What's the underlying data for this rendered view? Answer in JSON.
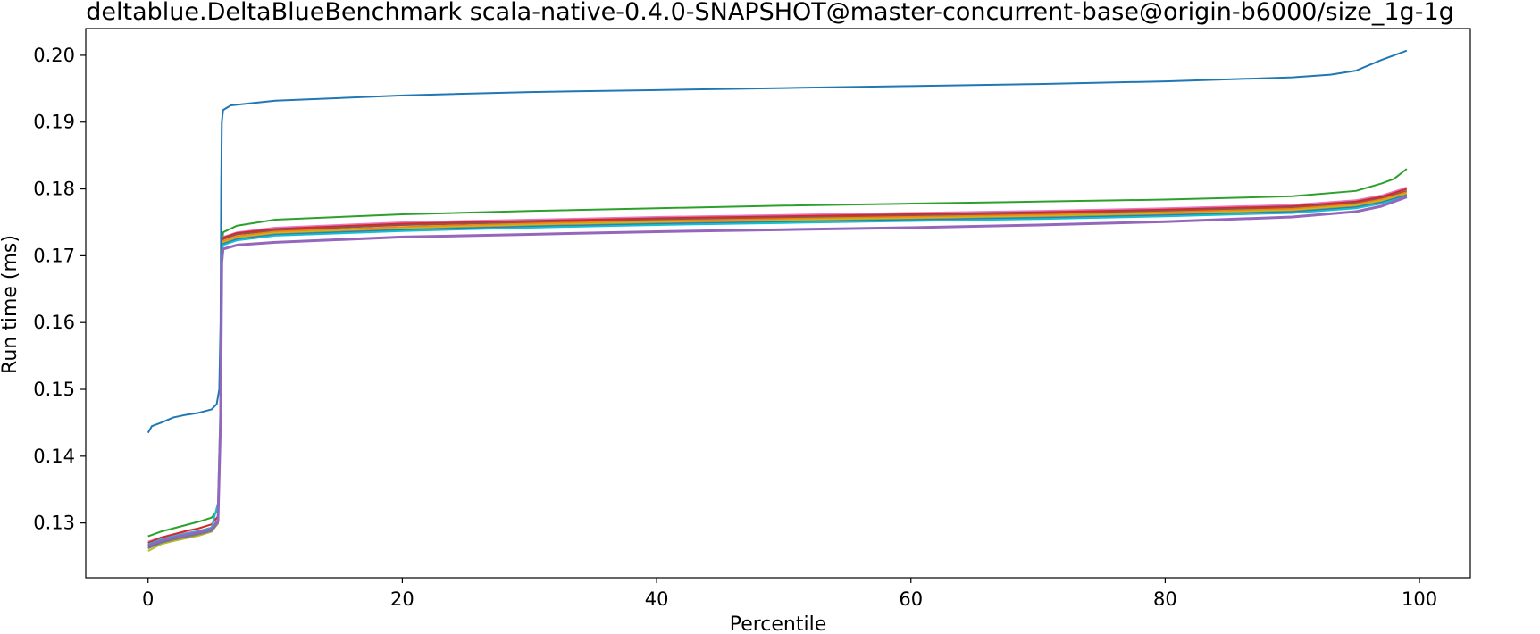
{
  "chart_data": {
    "type": "line",
    "title": "deltablue.DeltaBlueBenchmark scala-native-0.4.0-SNAPSHOT@master-concurrent-base@origin-b6000/size_1g-1g",
    "xlabel": "Percentile",
    "ylabel": "Run time (ms)",
    "xlim": [
      -4.9,
      104
    ],
    "ylim": [
      0.1218,
      0.204
    ],
    "xticks": [
      0,
      20,
      40,
      60,
      80,
      100
    ],
    "xtick_labels": [
      "0",
      "20",
      "40",
      "60",
      "80",
      "100"
    ],
    "yticks": [
      0.13,
      0.14,
      0.15,
      0.16,
      0.17,
      0.18,
      0.19,
      0.2
    ],
    "ytick_labels": [
      "0.13",
      "0.14",
      "0.15",
      "0.16",
      "0.17",
      "0.18",
      "0.19",
      "0.20"
    ],
    "grid": false,
    "legend": false,
    "series": [
      {
        "color": "#1f77b4",
        "points": [
          [
            0,
            0.1435
          ],
          [
            0.3,
            0.1445
          ],
          [
            1,
            0.145
          ],
          [
            2,
            0.1458
          ],
          [
            3,
            0.1462
          ],
          [
            4,
            0.1465
          ],
          [
            5,
            0.147
          ],
          [
            5.4,
            0.1478
          ],
          [
            5.6,
            0.15
          ],
          [
            5.7,
            0.16
          ],
          [
            5.75,
            0.18
          ],
          [
            5.8,
            0.19
          ],
          [
            5.9,
            0.1918
          ],
          [
            6.5,
            0.1925
          ],
          [
            10,
            0.1932
          ],
          [
            20,
            0.194
          ],
          [
            30,
            0.1945
          ],
          [
            40,
            0.1948
          ],
          [
            50,
            0.1951
          ],
          [
            60,
            0.1954
          ],
          [
            70,
            0.1957
          ],
          [
            80,
            0.1961
          ],
          [
            90,
            0.1967
          ],
          [
            93,
            0.1971
          ],
          [
            95,
            0.1977
          ],
          [
            96,
            0.1985
          ],
          [
            97,
            0.1993
          ],
          [
            98,
            0.2
          ],
          [
            99,
            0.2007
          ]
        ]
      },
      {
        "color": "#2ca02c",
        "points": [
          [
            0,
            0.128
          ],
          [
            1,
            0.1287
          ],
          [
            2,
            0.1292
          ],
          [
            3,
            0.1297
          ],
          [
            4,
            0.1302
          ],
          [
            5,
            0.1308
          ],
          [
            5.5,
            0.132
          ],
          [
            5.7,
            0.145
          ],
          [
            5.8,
            0.17
          ],
          [
            5.9,
            0.1735
          ],
          [
            7,
            0.1745
          ],
          [
            10,
            0.1754
          ],
          [
            20,
            0.1762
          ],
          [
            30,
            0.1767
          ],
          [
            40,
            0.1771
          ],
          [
            50,
            0.1775
          ],
          [
            60,
            0.1778
          ],
          [
            70,
            0.1781
          ],
          [
            80,
            0.1784
          ],
          [
            90,
            0.1789
          ],
          [
            95,
            0.1797
          ],
          [
            97,
            0.1808
          ],
          [
            98,
            0.1815
          ],
          [
            99,
            0.183
          ]
        ]
      },
      {
        "color": "#e377c2",
        "points": [
          [
            0,
            0.1272
          ],
          [
            1,
            0.1278
          ],
          [
            2,
            0.1282
          ],
          [
            3,
            0.1285
          ],
          [
            4,
            0.1288
          ],
          [
            5,
            0.1293
          ],
          [
            5.5,
            0.1305
          ],
          [
            5.7,
            0.145
          ],
          [
            5.8,
            0.17
          ],
          [
            5.9,
            0.1728
          ],
          [
            7,
            0.1735
          ],
          [
            10,
            0.1742
          ],
          [
            20,
            0.175
          ],
          [
            30,
            0.1754
          ],
          [
            40,
            0.1758
          ],
          [
            50,
            0.1761
          ],
          [
            60,
            0.1764
          ],
          [
            70,
            0.1767
          ],
          [
            80,
            0.1771
          ],
          [
            90,
            0.1776
          ],
          [
            95,
            0.1783
          ],
          [
            97,
            0.179
          ],
          [
            99,
            0.1802
          ]
        ]
      },
      {
        "color": "#d62728",
        "points": [
          [
            0,
            0.127
          ],
          [
            1,
            0.1278
          ],
          [
            2,
            0.1283
          ],
          [
            3,
            0.1288
          ],
          [
            4,
            0.1292
          ],
          [
            5,
            0.1298
          ],
          [
            5.5,
            0.131
          ],
          [
            5.7,
            0.145
          ],
          [
            5.8,
            0.17
          ],
          [
            5.9,
            0.1727
          ],
          [
            7,
            0.1734
          ],
          [
            10,
            0.174
          ],
          [
            20,
            0.1748
          ],
          [
            30,
            0.1752
          ],
          [
            40,
            0.1756
          ],
          [
            50,
            0.1759
          ],
          [
            60,
            0.1762
          ],
          [
            70,
            0.1765
          ],
          [
            80,
            0.1769
          ],
          [
            90,
            0.1774
          ],
          [
            95,
            0.1781
          ],
          [
            97,
            0.1788
          ],
          [
            99,
            0.18
          ]
        ]
      },
      {
        "color": "#8c564b",
        "points": [
          [
            0,
            0.1266
          ],
          [
            1,
            0.1274
          ],
          [
            2,
            0.1278
          ],
          [
            3,
            0.1282
          ],
          [
            4,
            0.1286
          ],
          [
            5,
            0.1291
          ],
          [
            5.5,
            0.1303
          ],
          [
            5.7,
            0.145
          ],
          [
            5.8,
            0.17
          ],
          [
            5.9,
            0.1725
          ],
          [
            7,
            0.1732
          ],
          [
            10,
            0.1738
          ],
          [
            20,
            0.1746
          ],
          [
            30,
            0.175
          ],
          [
            40,
            0.1754
          ],
          [
            50,
            0.1757
          ],
          [
            60,
            0.176
          ],
          [
            70,
            0.1763
          ],
          [
            80,
            0.1767
          ],
          [
            90,
            0.1772
          ],
          [
            95,
            0.1779
          ],
          [
            97,
            0.1786
          ],
          [
            99,
            0.1797
          ]
        ]
      },
      {
        "color": "#ff7f0e",
        "points": [
          [
            0,
            0.1262
          ],
          [
            1,
            0.1271
          ],
          [
            2,
            0.1276
          ],
          [
            3,
            0.128
          ],
          [
            4,
            0.1284
          ],
          [
            5,
            0.1289
          ],
          [
            5.5,
            0.1301
          ],
          [
            5.7,
            0.145
          ],
          [
            5.8,
            0.17
          ],
          [
            5.9,
            0.1722
          ],
          [
            7,
            0.1729
          ],
          [
            10,
            0.1736
          ],
          [
            20,
            0.1743
          ],
          [
            30,
            0.1748
          ],
          [
            40,
            0.1752
          ],
          [
            50,
            0.1755
          ],
          [
            60,
            0.1758
          ],
          [
            70,
            0.1761
          ],
          [
            80,
            0.1765
          ],
          [
            90,
            0.177
          ],
          [
            95,
            0.1777
          ],
          [
            97,
            0.1784
          ],
          [
            99,
            0.1795
          ]
        ]
      },
      {
        "color": "#bcbd22",
        "points": [
          [
            0,
            0.1258
          ],
          [
            1,
            0.1268
          ],
          [
            2,
            0.1273
          ],
          [
            3,
            0.1277
          ],
          [
            4,
            0.1281
          ],
          [
            5,
            0.1287
          ],
          [
            5.5,
            0.1299
          ],
          [
            5.7,
            0.145
          ],
          [
            5.8,
            0.17
          ],
          [
            5.9,
            0.172
          ],
          [
            7,
            0.1727
          ],
          [
            10,
            0.1734
          ],
          [
            20,
            0.1741
          ],
          [
            30,
            0.1746
          ],
          [
            40,
            0.175
          ],
          [
            50,
            0.1753
          ],
          [
            60,
            0.1756
          ],
          [
            70,
            0.1759
          ],
          [
            80,
            0.1763
          ],
          [
            90,
            0.1768
          ],
          [
            95,
            0.1775
          ],
          [
            97,
            0.1782
          ],
          [
            99,
            0.1793
          ]
        ]
      },
      {
        "color": "#7f7f7f",
        "points": [
          [
            0,
            0.1262
          ],
          [
            1,
            0.127
          ],
          [
            2,
            0.1275
          ],
          [
            3,
            0.1279
          ],
          [
            4,
            0.1283
          ],
          [
            5,
            0.1288
          ],
          [
            5.5,
            0.13
          ],
          [
            5.7,
            0.145
          ],
          [
            5.8,
            0.17
          ],
          [
            5.9,
            0.1718
          ],
          [
            7,
            0.1725
          ],
          [
            10,
            0.1732
          ],
          [
            20,
            0.1739
          ],
          [
            30,
            0.1744
          ],
          [
            40,
            0.1748
          ],
          [
            50,
            0.1751
          ],
          [
            60,
            0.1754
          ],
          [
            70,
            0.1757
          ],
          [
            80,
            0.1761
          ],
          [
            90,
            0.1766
          ],
          [
            95,
            0.1773
          ],
          [
            97,
            0.178
          ],
          [
            99,
            0.1791
          ]
        ]
      },
      {
        "color": "#1f77b4",
        "points": [
          [
            0,
            0.1264
          ],
          [
            1,
            0.1272
          ],
          [
            2,
            0.1277
          ],
          [
            3,
            0.1281
          ],
          [
            4,
            0.1285
          ],
          [
            5,
            0.129
          ],
          [
            5.5,
            0.1302
          ],
          [
            5.7,
            0.145
          ],
          [
            5.8,
            0.17
          ],
          [
            5.9,
            0.1717
          ],
          [
            7,
            0.1724
          ],
          [
            10,
            0.1731
          ],
          [
            20,
            0.1738
          ],
          [
            30,
            0.1743
          ],
          [
            40,
            0.1747
          ],
          [
            50,
            0.175
          ],
          [
            60,
            0.1753
          ],
          [
            70,
            0.1756
          ],
          [
            80,
            0.176
          ],
          [
            90,
            0.1765
          ],
          [
            95,
            0.1772
          ],
          [
            97,
            0.1779
          ],
          [
            99,
            0.179
          ]
        ]
      },
      {
        "color": "#17becf",
        "points": [
          [
            0,
            0.1268
          ],
          [
            1,
            0.1275
          ],
          [
            2,
            0.128
          ],
          [
            3,
            0.1284
          ],
          [
            4,
            0.1288
          ],
          [
            5,
            0.1293
          ],
          [
            5.5,
            0.133
          ],
          [
            5.7,
            0.148
          ],
          [
            5.8,
            0.17
          ],
          [
            5.9,
            0.1716
          ],
          [
            7,
            0.1723
          ],
          [
            10,
            0.173
          ],
          [
            20,
            0.1737
          ],
          [
            30,
            0.1742
          ],
          [
            40,
            0.1746
          ],
          [
            50,
            0.1749
          ],
          [
            60,
            0.1752
          ],
          [
            70,
            0.1755
          ],
          [
            80,
            0.1759
          ],
          [
            90,
            0.1764
          ],
          [
            95,
            0.1771
          ],
          [
            97,
            0.1778
          ],
          [
            99,
            0.1789
          ]
        ]
      },
      {
        "color": "#9467bd",
        "points": [
          [
            0,
            0.1266
          ],
          [
            1,
            0.1273
          ],
          [
            2,
            0.1278
          ],
          [
            3,
            0.1282
          ],
          [
            4,
            0.1286
          ],
          [
            5,
            0.1291
          ],
          [
            5.5,
            0.1303
          ],
          [
            5.7,
            0.145
          ],
          [
            5.8,
            0.169
          ],
          [
            5.9,
            0.171
          ],
          [
            7,
            0.1716
          ],
          [
            10,
            0.172
          ],
          [
            20,
            0.1728
          ],
          [
            30,
            0.1732
          ],
          [
            40,
            0.1736
          ],
          [
            50,
            0.1739
          ],
          [
            60,
            0.1742
          ],
          [
            70,
            0.1746
          ],
          [
            80,
            0.1751
          ],
          [
            90,
            0.1758
          ],
          [
            95,
            0.1766
          ],
          [
            97,
            0.1774
          ],
          [
            99,
            0.1788
          ]
        ]
      }
    ]
  }
}
